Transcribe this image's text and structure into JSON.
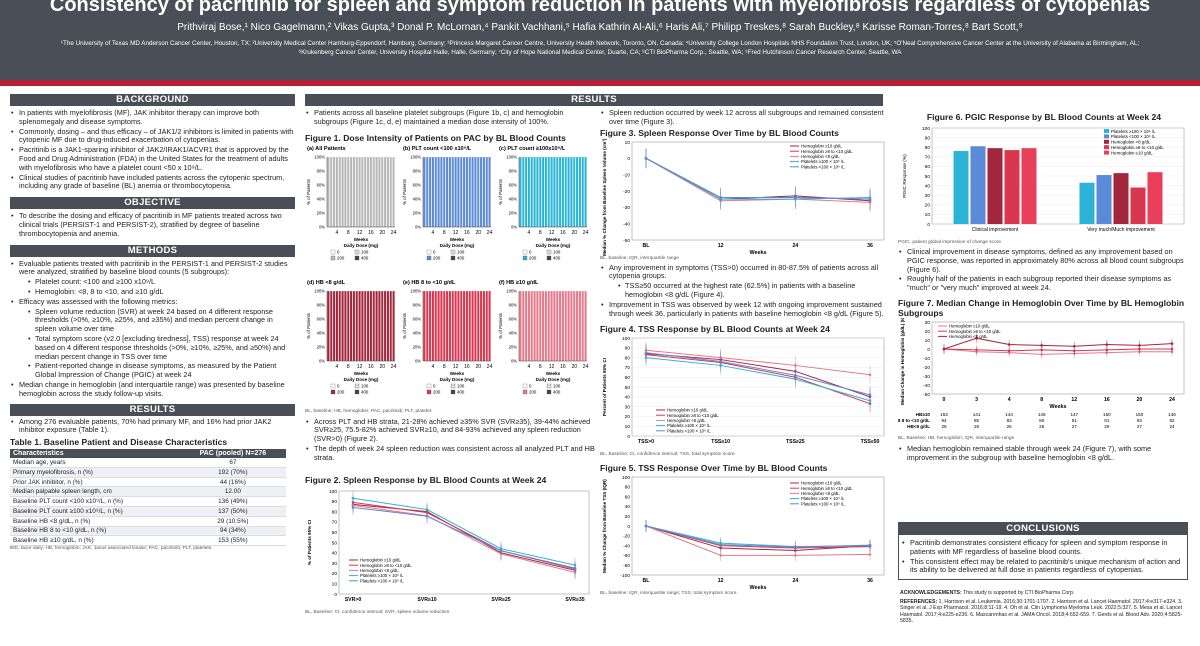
{
  "header": {
    "title": "Consistency of pacritinib for spleen and symptom reduction in patients with myelofibrosis regardless of cytopenias",
    "authors": "Prithviraj Bose,¹ Nico Gagelmann,² Vikas Gupta,³ Donal P. McLornan,⁴ Pankit Vachhani,⁵ Hafia Kathrin Al-Ali,⁶ Haris Ali,⁷ Philipp Treskes,⁸ Sarah Buckley,⁸ Karisse Roman-Torres,⁸ Bart Scott,⁹",
    "affiliations": "¹The University of Texas MD Anderson Cancer Center, Houston, TX; ²University Medical Center Hamburg-Eppendorf, Hamburg, Germany; ³Princess Margaret Cancer Centre, University Health Network, Toronto, ON, Canada; ⁴University College London Hospitals NHS Foundation Trust, London, UK; ⁵O'Neal Comprehensive Cancer Center at the University of Alabama at Birmingham, AL; ⁶Krukenberg Cancer Center, University Hospital Halle, Halle, Germany; ⁷City of Hope National Medical Center, Duarte, CA; ⁸CTI BioPharma Corp., Seattle, WA; ⁹Fred Hutchinson Cancer Research Center, Seattle, WA"
  },
  "background": {
    "heading": "BACKGROUND",
    "bullets": [
      "In patients with myelofibrosis (MF), JAK inhibitor therapy can improve both splenomegaly and disease symptoms.",
      "Commonly, dosing – and thus efficacy – of JAK1/2 inhibitors is limited in patients with cytopenic MF due to drug-induced exacerbation of cytopenias.",
      "Pacritinib is a JAK1-sparing inhibitor of JAK2/IRAK1/ACVR1 that is approved by the Food and Drug Administration (FDA) in the United States for the treatment of adults with myelofibrosis who have a platelet count <50 x 10⁹/L.",
      "Clinical studies of pacritinib have included patients across the cytopenic spectrum, including any grade of baseline (BL) anemia or thrombocytopenia."
    ]
  },
  "objective": {
    "heading": "OBJECTIVE",
    "bullets": [
      "To describe the dosing and efficacy of pacritinib in MF patients treated across two clinical trials (PERSIST-1 and PERSIST-2), stratified by degree of baseline thrombocytopenia and anemia."
    ]
  },
  "methods": {
    "heading": "METHODS",
    "b1": "Evaluable patients treated with pacritinib in the PERSIST-1 and PERSIST-2 studies were analyzed, stratified by baseline blood counts (5 subgroups):",
    "b1_sub": [
      "Platelet count: <100 and ≥100 x10⁹/L",
      "Hemoglobin: <8, 8 to <10, and ≥10 g/dL"
    ],
    "b2": "Efficacy was assessed with the following metrics:",
    "b2_sub": [
      "Spleen volume reduction (SVR) at week 24 based on 4 different response thresholds (>0%, ≥10%, ≥25%, and ≥35%) and median percent change in spleen volume over time",
      "Total symptom score (v2.0 [excluding tiredness], TSS) response at week 24 based on 4 different response thresholds (>0%, ≥10%, ≥25%, and ≥50%) and median percent change in TSS over time",
      "Patient-reported change in disease symptoms, as measured by the Patient Global Impression of Change (PGIC) at week 24"
    ],
    "b3": "Median change in hemoglobin (and interquartile range) was presented by baseline hemoglobin across the study follow-up visits."
  },
  "results_left": {
    "heading": "RESULTS",
    "bullets": [
      "Among 276 evaluable patients, 70% had primary MF, and 16% had prior JAK2 inhibitor exposure (Table 1)."
    ],
    "table_title": "Table 1. Baseline Patient and Disease Characteristics",
    "table_headers": [
      "Characteristics",
      "PAC (pooled) N=276"
    ],
    "table_rows": [
      [
        "Median age, years",
        "67"
      ],
      [
        "Primary myelofibrosis, n (%)",
        "192 (70%)"
      ],
      [
        "Prior JAK inhibitor, n (%)",
        "44 (16%)"
      ],
      [
        "Median palpable spleen length, cm",
        "12.00"
      ],
      [
        "Baseline PLT count <100 x10⁹/L, n (%)",
        "136 (49%)"
      ],
      [
        "Baseline PLT count ≥100 x10⁹/L, n (%)",
        "137 (50%)"
      ],
      [
        "Baseline HB <8 g/dL, n (%)",
        "29 (10.5%)"
      ],
      [
        "Baseline HB 8 to <10 g/dL, n (%)",
        "94 (34%)"
      ],
      [
        "Baseline HB ≥10 g/dL, n (%)",
        "153 (55%)"
      ]
    ],
    "table_footnote": "BID, twice daily; HB, hemoglobin; JAK, Janus associated kinase; PAC, pacritinib; PLT, platelets."
  },
  "results": {
    "heading": "RESULTS",
    "col2_intro": "Patients across all baseline platelet subgroups (Figure 1b, c) and hemoglobin subgroups (Figure 1c, d, e) maintained a median dose intensity of 100%.",
    "fig1_title": "Figure 1. Dose Intensity of Patients on PAC by BL Blood Counts",
    "fig1_footnote": "BL, baseline; HB, hemoglobin; PAC, pacritinib; PLT, platelet.",
    "col2_mid": [
      "Across PLT and HB strata, 21-28% achieved ≥35% SVR (SVR≥35), 39-44% achieved SVR≥25, 75.5-82% achieved SVR≥10, and 84-93% achieved any spleen reduction (SVR>0) (Figure 2).",
      "The depth of week 24 spleen reduction was consistent across all analyzed PLT and HB strata."
    ],
    "fig2_title": "Figure 2. Spleen Response by BL Blood Counts at Week 24",
    "fig2_footnote": "BL, Baseline; CI, confidence interval; SVR, spleen volume reduction.",
    "col3_intro": "Spleen reduction occurred by week 12 across all subgroups and remained consistent over time (Figure 3).",
    "fig3_title": "Figure 3. Spleen Response Over Time by BL Blood Counts",
    "fig3_footnote": "BL, baseline; IQR, interquartile range",
    "col3_mid_b1": "Any improvement in symptoms (TSS>0) occurred in 80-87.5% of patients across all cytopenia groups.",
    "col3_mid_b1_sub": "TSS≥50 occurred at the highest rate (62.5%) in patients with a baseline hemoglobin <8 g/dL (Figure 4).",
    "col3_mid_b2": "Improvement in TSS was observed by week 12 with ongoing improvement sustained through week 36, particularly in patients with baseline hemoglobin <8 g/dL (Figure 5).",
    "fig4_title": "Figure 4. TSS Response by BL Blood Counts at Week 24",
    "fig4_footnote": "BL, Baseline; CI, confidence interval; TSS, total symptom score.",
    "fig5_title": "Figure 5. TSS Response Over Time by BL Blood Counts",
    "fig5_footnote": "BL, baseline; IQR, interquartile range; TSS, total symptom score.",
    "fig6_title": "Figure 6. PGIC Response by BL Blood Counts at Week 24",
    "fig6_footnote": "PGIC, patient global impression of change score",
    "col4_mid": [
      "Clinical improvement in disease symptoms, defined as any improvement based on PGIC response, was reported in approximately 80% across all blood count subgroups (Figure 6).",
      "Roughly half of the patients in each subgroup reported their disease symptoms as \"much\" or \"very much\" improved at week 24."
    ],
    "fig7_title": "Figure 7. Median Change in Hemoglobin Over Time by BL Hemoglobin Subgroups",
    "fig7_footnote": "BL, Baseline; HB, hemoglobin; IQR, interquartile range",
    "col4_low": [
      "Median hemoglobin remained stable through week 24 (Figure 7), with some improvement in the subgroup with baseline hemoglobin <8 g/dL."
    ]
  },
  "conclusions": {
    "heading": "CONCLUSIONS",
    "bullets": [
      "Pacritinib demonstrates consistent efficacy for spleen and symptom response in patients with MF regardless of baseline blood counts.",
      "This consistent effect may be related to pacritinib's unique mechanism of action and its ability to be delivered at full dose in patients regardless of cytopenias."
    ]
  },
  "acknowledgements": {
    "label": "ACKNOWLEDGEMENTS:",
    "text": "This study is supported by CTI BioPharma Corp.",
    "references_label": "REFERENCES:",
    "references": "1. Harrison et al. Leukemia. 2016;30:1701-1707. 2. Harrison et al. Lancet Haematol. 2017;4:e317-e324. 3. Singer et al. J Exp Pharmacol. 2016;8:11-19. 4. Oh et al. Clin Lymphoma Myeloma Leuk. 2022;5:327. 5. Mesa et al. Lancet Haematol. 2017;4:e225-e236. 6. Mascarenhas et al. JAMA Oncol. 2018;4:652-659. 7. Gerds et al. Blood Adv. 2020;4:5825-5835."
  },
  "chart_data": [
    {
      "id": "fig1",
      "type": "bar",
      "panels": [
        {
          "label": "(a) All Patients",
          "color": "#b8b8b8"
        },
        {
          "label": "(b) PLT count <100 x10⁹/L",
          "color": "#5b8ad6"
        },
        {
          "label": "(c) PLT count ≥100x10⁹/L",
          "color": "#2bb3d8"
        },
        {
          "label": "(d) HB <8 g/dL",
          "color": "#a3263d"
        },
        {
          "label": "(e) HB 8 to <10 g/dL",
          "color": "#d9364f"
        },
        {
          "label": "(f) HB ≥10 g/dL",
          "color": "#e57a8a"
        }
      ],
      "yticks": [
        "100%",
        "80%",
        "60%",
        "40%",
        "20%",
        "0%"
      ],
      "ylabel": "% of Patients",
      "xticks": [
        "4",
        "8",
        "12",
        "16",
        "20",
        "24"
      ],
      "xlabel": "Weeks",
      "legend_title": "Daily Dose (mg)",
      "legend": [
        "0",
        "100",
        "200",
        "400"
      ]
    },
    {
      "id": "fig2",
      "type": "line",
      "categories": [
        "SVR>0",
        "SVR≥10",
        "SVR≥25",
        "SVR≥35"
      ],
      "ylabel": "% of Patients 95% CI",
      "yticks": [
        0,
        10,
        20,
        30,
        40,
        50,
        60,
        70,
        80,
        90,
        100
      ],
      "ylim": [
        0,
        100
      ],
      "series": [
        {
          "name": "Hemoglobin ≥10 g/dL",
          "color": "#a3263d",
          "values": [
            87,
            80,
            40,
            23
          ]
        },
        {
          "name": "Hemoglobin ≥8 to <10 g/dL",
          "color": "#d9364f",
          "values": [
            89,
            79,
            42,
            25
          ]
        },
        {
          "name": "Hemoglobin <8 g/dL",
          "color": "#e57a8a",
          "values": [
            86,
            76,
            39,
            21
          ]
        },
        {
          "name": "Platelets ≥100 × 10⁹ /L",
          "color": "#2bb3d8",
          "values": [
            93,
            82,
            44,
            28
          ]
        },
        {
          "name": "Platelets <100 × 10⁹ /L",
          "color": "#5b8ad6",
          "values": [
            84,
            75.5,
            42,
            24
          ]
        }
      ]
    },
    {
      "id": "fig3",
      "type": "line",
      "x": [
        "BL",
        "12",
        "24",
        "36"
      ],
      "xlabel": "Weeks",
      "ylabel": "Median % Change from Baseline Spleen Volume (cm³) (IQR)",
      "yticks": [
        10,
        0,
        -10,
        -20,
        -30,
        -40,
        -50
      ],
      "ylim": [
        -50,
        10
      ],
      "series": [
        {
          "name": "Hemoglobin ≥10 g/dL",
          "color": "#a3263d",
          "values": [
            0,
            -25,
            -23,
            -26
          ]
        },
        {
          "name": "Hemoglobin ≥8 to <10 g/dL",
          "color": "#d9364f",
          "values": [
            0,
            -24,
            -24,
            -25
          ]
        },
        {
          "name": "Hemoglobin <8 g/dL",
          "color": "#e57a8a",
          "values": [
            0,
            -26,
            -25,
            -27
          ]
        },
        {
          "name": "Platelets ≥100 × 10⁹ /L",
          "color": "#2bb3d8",
          "values": [
            0,
            -25,
            -25,
            -24
          ]
        },
        {
          "name": "Platelets <100 × 10⁹ /L",
          "color": "#5b8ad6",
          "values": [
            0,
            -24,
            -24,
            -25
          ]
        }
      ]
    },
    {
      "id": "fig4",
      "type": "line",
      "categories": [
        "TSS>0",
        "TSS≥10",
        "TSS≥25",
        "TSS≥50"
      ],
      "ylabel": "Percent of Patients 95% CI",
      "yticks": [
        100,
        90,
        80,
        70,
        60,
        50,
        40,
        30,
        20,
        10,
        0
      ],
      "ylim": [
        0,
        100
      ],
      "series": [
        {
          "name": "Hemoglobin ≥10 g/dL",
          "color": "#a3263d",
          "values": [
            84,
            78,
            66,
            40
          ]
        },
        {
          "name": "Hemoglobin ≥8 to <10 g/dL",
          "color": "#d9364f",
          "values": [
            83,
            75,
            60,
            33
          ]
        },
        {
          "name": "Hemoglobin <8 g/dL",
          "color": "#e57a8a",
          "values": [
            87.5,
            80,
            72,
            62.5
          ]
        },
        {
          "name": "Platelets ≥100 × 10⁹ /L",
          "color": "#2bb3d8",
          "values": [
            80,
            72,
            58,
            36
          ]
        },
        {
          "name": "Platelets <100 × 10⁹ /L",
          "color": "#5b8ad6",
          "values": [
            85,
            76,
            62,
            42
          ]
        }
      ]
    },
    {
      "id": "fig5",
      "type": "line",
      "x": [
        "BL",
        "12",
        "24",
        "36"
      ],
      "xlabel": "Weeks",
      "ylabel": "Median % Change from Baseline TSS (IQR)",
      "yticks": [
        100,
        80,
        60,
        40,
        20,
        0,
        -20,
        -40,
        -60,
        -80,
        -100
      ],
      "ylim": [
        -100,
        100
      ],
      "series": [
        {
          "name": "Hemoglobin ≥10 g/dL",
          "color": "#a3263d",
          "values": [
            0,
            -45,
            -50,
            -40
          ]
        },
        {
          "name": "Hemoglobin ≥8 to <10 g/dL",
          "color": "#d9364f",
          "values": [
            0,
            -40,
            -45,
            -42
          ]
        },
        {
          "name": "Hemoglobin <8 g/dL",
          "color": "#e57a8a",
          "values": [
            0,
            -60,
            -60,
            -58
          ]
        },
        {
          "name": "Platelets ≥100 × 10⁹ /L",
          "color": "#2bb3d8",
          "values": [
            0,
            -35,
            -42,
            -40
          ]
        },
        {
          "name": "Platelets <100 × 10⁹ /L",
          "color": "#5b8ad6",
          "values": [
            0,
            -38,
            -43,
            -39
          ]
        }
      ]
    },
    {
      "id": "fig6",
      "type": "bar",
      "categories": [
        "Clinical improvement",
        "Very much/Much improvement"
      ],
      "ylabel": "PGIC Response (%)",
      "yticks": [
        100,
        90,
        80,
        70,
        60,
        50,
        40,
        30,
        20,
        10,
        0
      ],
      "ylim": [
        0,
        100
      ],
      "legend_position": "top-right",
      "series": [
        {
          "name": "Platelets ≥100 × 10⁹ /L",
          "color": "#2bb3d8",
          "values": [
            76,
            43
          ]
        },
        {
          "name": "Platelets <100 × 10⁹ /L",
          "color": "#5b8ad6",
          "values": [
            81,
            51
          ]
        },
        {
          "name": "Hemoglobin <8 g/dL",
          "color": "#a3263d",
          "values": [
            79,
            53
          ]
        },
        {
          "name": "Hemoglobin ≥8 to <10 g/dL",
          "color": "#d9364f",
          "values": [
            77,
            38
          ]
        },
        {
          "name": "Hemoglobin ≥10 g/dL",
          "color": "#e8405a",
          "values": [
            79,
            54
          ]
        }
      ]
    },
    {
      "id": "fig7",
      "type": "line",
      "x": [
        "0",
        "3",
        "4",
        "8",
        "12",
        "16",
        "20",
        "24"
      ],
      "xlabel": "Weeks",
      "ylabel": "Median Change in Hemoglobin (g/dL) (IQR)",
      "yticks": [
        30,
        20,
        10,
        0,
        -10,
        -20,
        -30,
        -40,
        -50
      ],
      "ylim": [
        -50,
        30
      ],
      "series": [
        {
          "name": "Hemoglobin ≥10 g/dL",
          "color": "#e57a8a",
          "values": [
            0,
            -3,
            -4,
            -6,
            -5,
            -4,
            -3,
            -3
          ]
        },
        {
          "name": "Hemoglobin ≥8 to <10 g/dL",
          "color": "#d9364f",
          "values": [
            0,
            -1,
            -2,
            -1,
            -2,
            -1,
            0,
            0
          ]
        },
        {
          "name": "Hemoglobin <8 g/dL",
          "color": "#a3263d",
          "values": [
            0,
            12,
            5,
            4,
            3,
            5,
            4,
            6
          ]
        }
      ],
      "n_table": {
        "rows": [
          {
            "label": "HB≥10",
            "values": [
              "153",
              "141",
              "144",
              "146",
              "147",
              "150",
              "150",
              "146"
            ]
          },
          {
            "label": "HB 8 to <10 g/dL",
            "values": [
              "94",
              "85",
              "83",
              "80",
              "91",
              "91",
              "93",
              "82"
            ]
          },
          {
            "label": "HB<8 g/dL",
            "values": [
              "29",
              "26",
              "26",
              "26",
              "27",
              "29",
              "27",
              "24"
            ]
          }
        ]
      }
    }
  ]
}
